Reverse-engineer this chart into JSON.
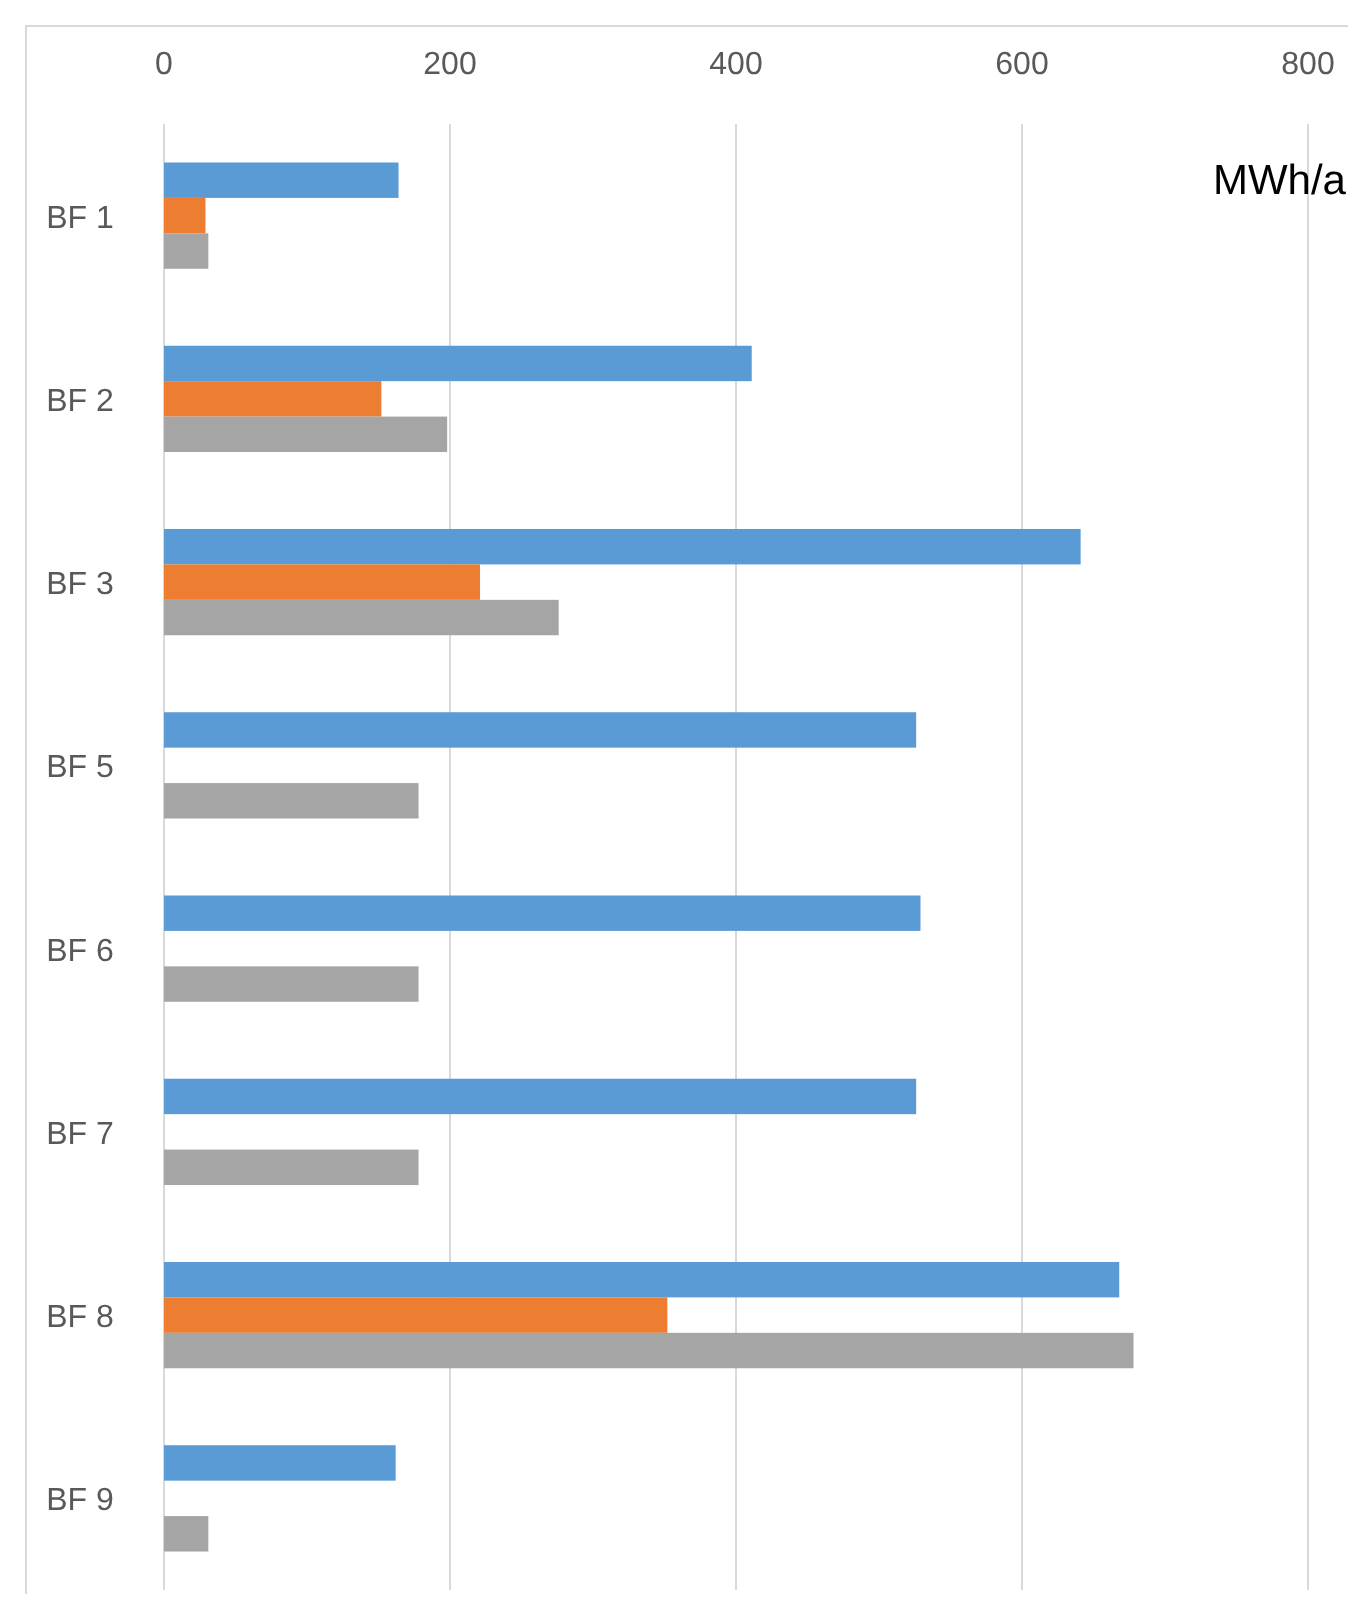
{
  "chart_data": {
    "type": "bar",
    "orientation": "horizontal",
    "categories": [
      "BF 1",
      "BF 2",
      "BF 3",
      "BF 5",
      "BF 6",
      "BF 7",
      "BF 8",
      "BF 9"
    ],
    "series": [
      {
        "color": "#5b9bd5",
        "values": [
          164,
          411,
          641,
          526,
          529,
          526,
          668,
          162
        ]
      },
      {
        "color": "#ed7d31",
        "values": [
          29,
          152,
          221,
          null,
          null,
          null,
          352,
          null
        ]
      },
      {
        "color": "#a5a5a5",
        "values": [
          31,
          198,
          276,
          178,
          178,
          178,
          678,
          31
        ]
      }
    ],
    "xlim": [
      0,
      800
    ],
    "xticks": [
      0,
      200,
      400,
      600,
      800
    ],
    "grid": "x",
    "annotations": [
      "MWh/a"
    ]
  }
}
